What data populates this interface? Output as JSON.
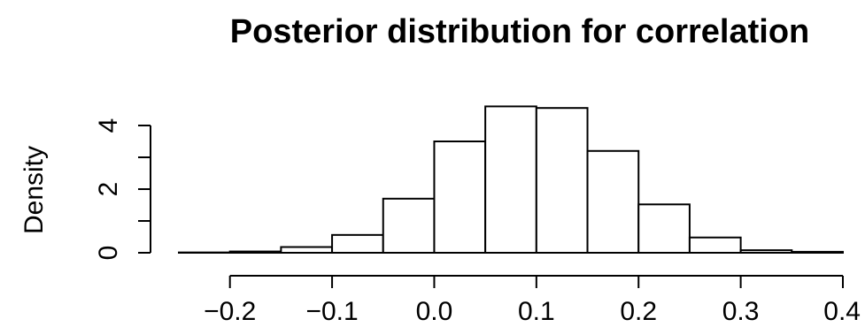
{
  "chart_data": {
    "type": "bar",
    "title": "Posterior distribution for correlation",
    "xlabel": "",
    "ylabel": "Density",
    "x_ticks": [
      "−0.2",
      "−0.1",
      "0.0",
      "0.1",
      "0.2",
      "0.3",
      "0.4"
    ],
    "x_tick_values": [
      -0.2,
      -0.1,
      0.0,
      0.1,
      0.2,
      0.3,
      0.4
    ],
    "y_ticks": [
      "0",
      "2",
      "4"
    ],
    "y_tick_values": [
      0,
      2,
      4
    ],
    "y_minor_ticks": [
      1,
      3
    ],
    "xlim": [
      -0.25,
      0.4
    ],
    "ylim": [
      0,
      4.6
    ],
    "bin_edges": [
      -0.25,
      -0.2,
      -0.15,
      -0.1,
      -0.05,
      0.0,
      0.05,
      0.1,
      0.15,
      0.2,
      0.25,
      0.3,
      0.35,
      0.4
    ],
    "values": [
      0.01,
      0.04,
      0.18,
      0.56,
      1.7,
      3.5,
      4.6,
      4.55,
      3.2,
      1.52,
      0.48,
      0.08,
      0.03
    ],
    "grid": false,
    "legend": "none"
  }
}
